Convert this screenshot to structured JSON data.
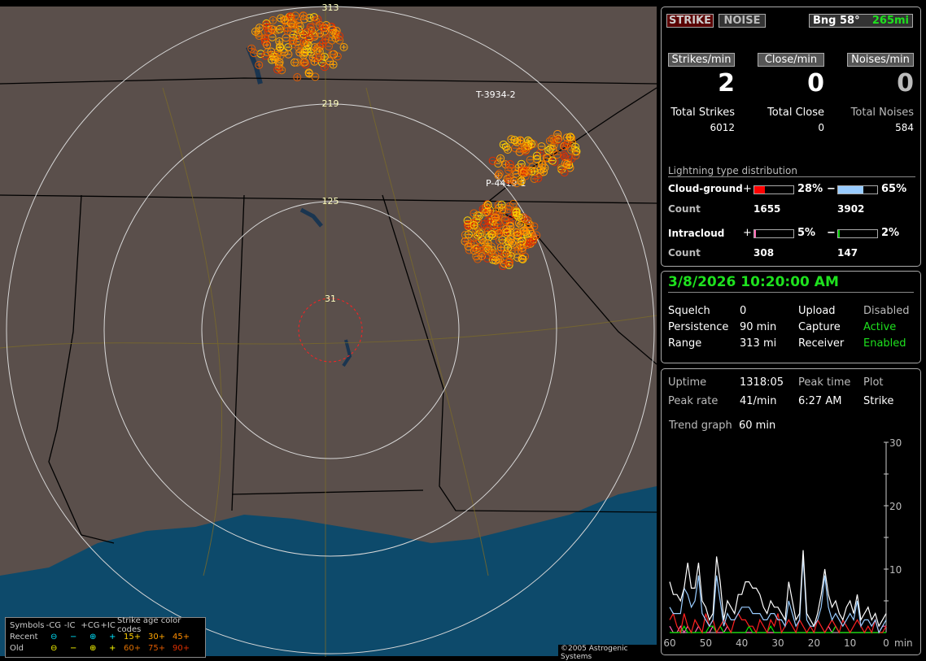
{
  "map": {
    "ring_labels": [
      "31",
      "125",
      "219",
      "313"
    ],
    "storm_labels": [
      "T-3934-2",
      "P-4419-1"
    ],
    "copyright": "©2005 Astrogenic Systems",
    "colors": {
      "land": "#5a4f4b",
      "water": "#0d4a6b",
      "ring": "#d8d8d8",
      "close_ring": "#ff2020"
    }
  },
  "legend": {
    "headers": [
      "Symbols",
      "-CG",
      "-IC",
      "+CG",
      "+IC",
      "Strike age color codes"
    ],
    "recent": {
      "label": "Recent",
      "ages": [
        "15+",
        "30+",
        "45+"
      ]
    },
    "old": {
      "label": "Old",
      "ages": [
        "60+",
        "75+",
        "90+"
      ]
    },
    "symbols": {
      "neg_cg": "⊖",
      "neg_ic": "−",
      "pos_cg": "⊕",
      "pos_ic": "+"
    },
    "age_colors": [
      "#ffd000",
      "#ffa500",
      "#ff8c00",
      "#e07000",
      "#e05a00",
      "#e03000"
    ]
  },
  "header": {
    "strike_btn": "STRIKE",
    "noise_btn": "NOISE",
    "bearing": "Bng 58°",
    "distance": "265mi"
  },
  "rates": [
    {
      "label": "Strikes/min",
      "value": "2",
      "total_label": "Total Strikes",
      "total": "6012"
    },
    {
      "label": "Close/min",
      "value": "0",
      "total_label": "Total Close",
      "total": "0"
    },
    {
      "label": "Noises/min",
      "value": "0",
      "total_label": "Total Noises",
      "total": "584"
    }
  ],
  "distribution": {
    "title": "Lightning type distribution",
    "cg": {
      "label": "Cloud-ground",
      "pos_pct": "28%",
      "pos_frac": 0.28,
      "neg_pct": "65%",
      "neg_frac": 0.65,
      "count_label": "Count",
      "pos_count": "1655",
      "neg_count": "3902"
    },
    "ic": {
      "label": "Intracloud",
      "pos_pct": "5%",
      "pos_frac": 0.05,
      "neg_pct": "2%",
      "neg_frac": 0.02,
      "count_label": "Count",
      "pos_count": "308",
      "neg_count": "147"
    },
    "plus": "+",
    "minus": "−",
    "colors": {
      "pos_cg": "#ff0000",
      "neg_cg": "#99ccff",
      "pos_ic": "#ff69b4",
      "neg_ic": "#00cc00"
    }
  },
  "status": {
    "datetime": "3/8/2026 10:20:00 AM",
    "rows": [
      {
        "k": "Squelch",
        "v": "0",
        "k2": "Upload",
        "v2": "Disabled"
      },
      {
        "k": "Persistence",
        "v": "90 min",
        "k2": "Capture",
        "v2": "Active"
      },
      {
        "k": "Range",
        "v": "313 mi",
        "k2": "Receiver",
        "v2": "Enabled"
      }
    ]
  },
  "stats": {
    "uptime_label": "Uptime",
    "uptime": "1318:05",
    "peak_time_label": "Peak time",
    "plot_label": "Plot",
    "peak_rate_label": "Peak rate",
    "peak_rate": "41/min",
    "peak_time": "6:27 AM",
    "plot": "Strike",
    "trend_label": "Trend graph",
    "trend": "60 min"
  },
  "chart_data": {
    "type": "line",
    "xlabel": "min",
    "x_ticks": [
      "60",
      "50",
      "40",
      "30",
      "20",
      "10",
      "0"
    ],
    "y_ticks": [
      "10",
      "20",
      "30"
    ],
    "xlim": [
      60,
      0
    ],
    "ylim": [
      0,
      30
    ],
    "series": [
      {
        "color": "#ffffff",
        "values": [
          8,
          6,
          6,
          5,
          7,
          11,
          7,
          7,
          11,
          5,
          4,
          2,
          3,
          12,
          8,
          2,
          5,
          4,
          3,
          6,
          6,
          8,
          8,
          7,
          7,
          6,
          4,
          3,
          5,
          4,
          4,
          3,
          2,
          8,
          5,
          2,
          3,
          13,
          3,
          2,
          1,
          3,
          6,
          10,
          6,
          4,
          5,
          3,
          2,
          4,
          5,
          3,
          6,
          2,
          3,
          4,
          2,
          3,
          1,
          2,
          3
        ]
      },
      {
        "color": "#99ccff",
        "values": [
          4,
          3,
          3,
          3,
          7,
          6,
          4,
          5,
          9,
          3,
          2,
          1,
          2,
          9,
          5,
          1,
          3,
          2,
          2,
          3,
          4,
          4,
          4,
          3,
          3,
          3,
          2,
          2,
          3,
          3,
          2,
          2,
          1,
          5,
          3,
          1,
          2,
          12,
          2,
          1,
          1,
          2,
          4,
          9,
          4,
          2,
          3,
          2,
          1,
          2,
          3,
          2,
          5,
          1,
          2,
          2,
          1,
          2,
          0,
          1,
          2
        ]
      },
      {
        "color": "#ff2020",
        "values": [
          2,
          3,
          1,
          0,
          3,
          1,
          0,
          2,
          1,
          0,
          3,
          1,
          2,
          0,
          1,
          2,
          1,
          0,
          2,
          3,
          2,
          2,
          1,
          1,
          0,
          2,
          1,
          0,
          2,
          1,
          3,
          0,
          1,
          2,
          1,
          0,
          2,
          1,
          0,
          1,
          0,
          2,
          1,
          0,
          1,
          2,
          1,
          0,
          2,
          1,
          0,
          1,
          2,
          1,
          0,
          1,
          0,
          2,
          0,
          0,
          1
        ]
      },
      {
        "color": "#00ee00",
        "values": [
          0,
          0,
          0,
          0,
          1,
          0,
          0,
          0,
          0,
          0,
          0,
          1,
          1,
          0,
          1,
          0,
          0,
          0,
          0,
          0,
          0,
          0,
          1,
          0,
          0,
          0,
          0,
          0,
          1,
          0,
          0,
          0,
          0,
          0,
          0,
          0,
          0,
          0,
          0,
          0,
          0,
          0,
          0,
          0,
          0,
          0,
          1,
          0,
          0,
          0,
          0,
          0,
          0,
          0,
          0,
          0,
          0,
          0,
          0,
          0,
          0
        ]
      },
      {
        "color": "#ff69b4",
        "values": [
          1,
          0,
          0,
          1,
          0,
          1,
          0,
          0,
          1,
          0,
          0,
          0,
          1,
          0,
          0,
          0,
          1,
          0,
          0,
          0,
          0,
          0,
          0,
          0,
          0,
          0,
          0,
          0,
          0,
          0,
          0,
          0,
          0,
          0,
          0,
          0,
          0,
          0,
          0,
          0,
          0,
          0,
          0,
          0,
          1,
          0,
          1,
          0,
          0,
          0,
          0,
          0,
          0,
          0,
          0,
          0,
          0,
          0,
          0,
          1,
          1
        ]
      }
    ]
  }
}
